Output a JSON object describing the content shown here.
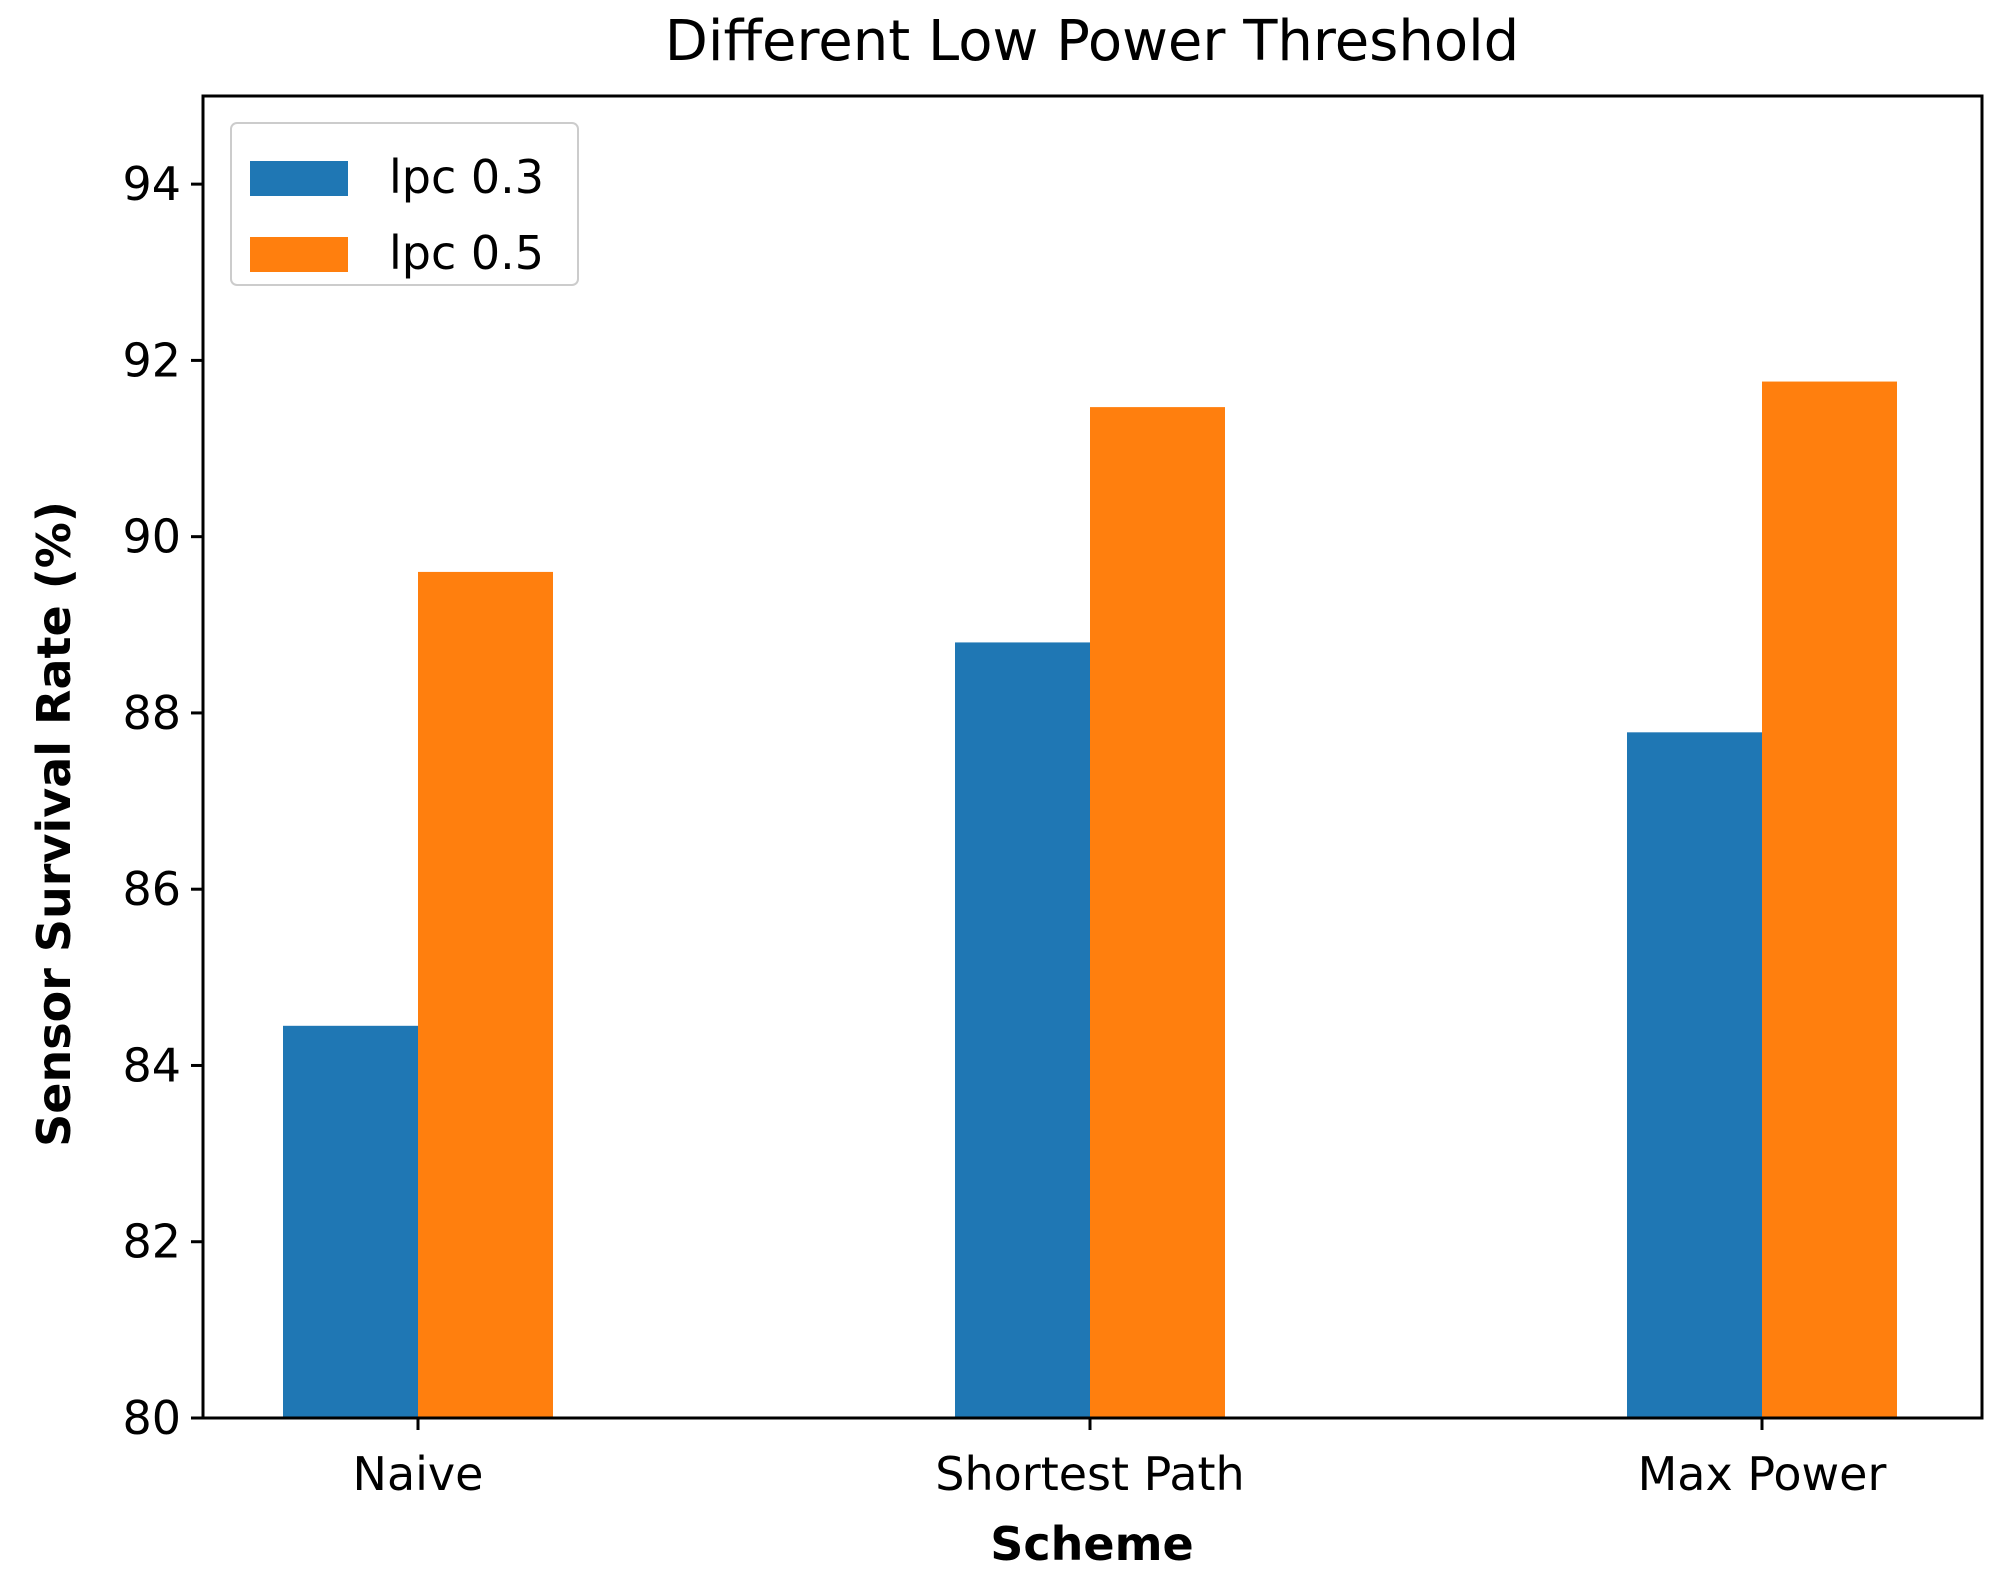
{
  "chart_data": {
    "type": "bar",
    "title": "Different Low Power Threshold",
    "xlabel": "Scheme",
    "ylabel": "Sensor Survival Rate (%)",
    "categories": [
      "Naive",
      "Shortest Path",
      "Max Power"
    ],
    "series": [
      {
        "name": "lpc 0.3",
        "color": "#1f77b4",
        "values": [
          84.45,
          88.8,
          87.78
        ]
      },
      {
        "name": "lpc 0.5",
        "color": "#ff7f0e",
        "values": [
          89.6,
          91.47,
          91.76
        ]
      }
    ],
    "ylim": [
      80,
      95
    ],
    "yticks": [
      "80",
      "82",
      "84",
      "86",
      "88",
      "90",
      "92",
      "94"
    ],
    "grid": false,
    "legend_position": "top-left"
  }
}
